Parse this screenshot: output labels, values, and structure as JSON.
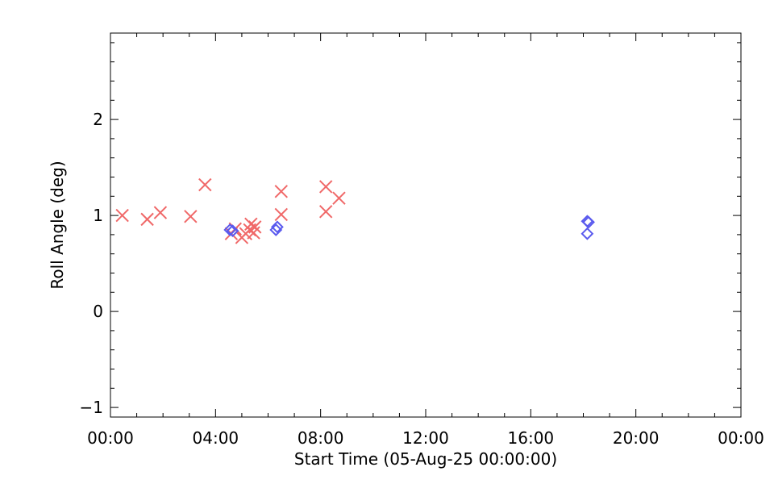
{
  "chart_data": {
    "type": "scatter",
    "xlabel": "Start Time (05-Aug-25 00:00:00)",
    "ylabel": "Roll Angle (deg)",
    "xlim": [
      0,
      24
    ],
    "ylim": [
      -1.1,
      2.9
    ],
    "x_tick_labels": [
      {
        "value": 0,
        "label": "00:00"
      },
      {
        "value": 4,
        "label": "04:00"
      },
      {
        "value": 8,
        "label": "08:00"
      },
      {
        "value": 12,
        "label": "12:00"
      },
      {
        "value": 16,
        "label": "16:00"
      },
      {
        "value": 20,
        "label": "20:00"
      },
      {
        "value": 24,
        "label": "00:00"
      }
    ],
    "y_tick_labels": [
      {
        "value": -1,
        "label": "−1"
      },
      {
        "value": 0,
        "label": "0"
      },
      {
        "value": 1,
        "label": "1"
      },
      {
        "value": 2,
        "label": "2"
      }
    ],
    "grid": false,
    "series": [
      {
        "marker": "x",
        "color": "#f06868",
        "points": [
          {
            "x": 0.45,
            "y": 1.0
          },
          {
            "x": 1.4,
            "y": 0.96
          },
          {
            "x": 1.9,
            "y": 1.03
          },
          {
            "x": 3.05,
            "y": 0.99
          },
          {
            "x": 3.6,
            "y": 1.32
          },
          {
            "x": 4.6,
            "y": 0.81
          },
          {
            "x": 4.75,
            "y": 0.86
          },
          {
            "x": 5.0,
            "y": 0.77
          },
          {
            "x": 5.15,
            "y": 0.81
          },
          {
            "x": 5.3,
            "y": 0.85
          },
          {
            "x": 5.35,
            "y": 0.91
          },
          {
            "x": 5.45,
            "y": 0.82
          },
          {
            "x": 5.5,
            "y": 0.88
          },
          {
            "x": 6.5,
            "y": 1.01
          },
          {
            "x": 6.5,
            "y": 1.25
          },
          {
            "x": 8.2,
            "y": 1.04
          },
          {
            "x": 8.2,
            "y": 1.3
          },
          {
            "x": 8.7,
            "y": 1.18
          }
        ]
      },
      {
        "marker": "diamond",
        "color": "#5a5aee",
        "points": [
          {
            "x": 4.55,
            "y": 0.85
          },
          {
            "x": 4.65,
            "y": 0.84
          },
          {
            "x": 6.3,
            "y": 0.85
          },
          {
            "x": 6.35,
            "y": 0.88
          },
          {
            "x": 18.15,
            "y": 0.94
          },
          {
            "x": 18.2,
            "y": 0.93
          },
          {
            "x": 18.15,
            "y": 0.81
          }
        ]
      }
    ]
  }
}
